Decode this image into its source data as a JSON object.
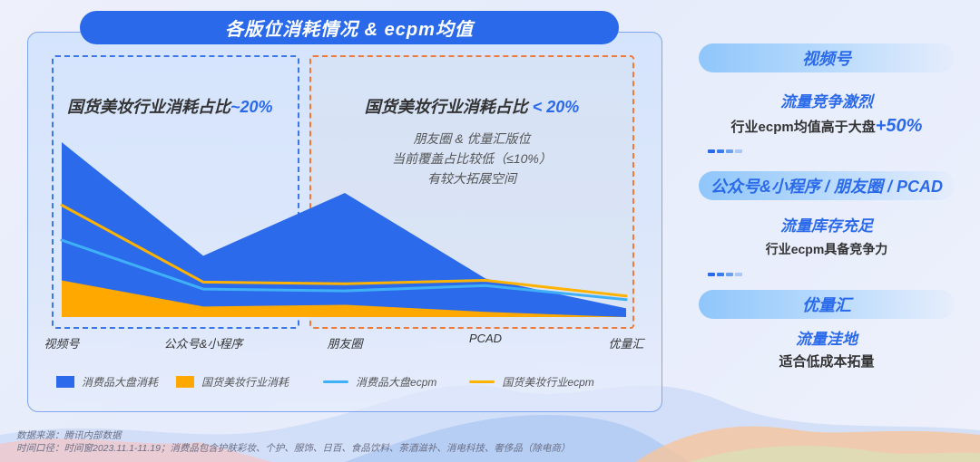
{
  "title": "各版位消耗情况 & ecpm均值",
  "annotations": {
    "left_box": {
      "text": "国货美妆行业消耗占比",
      "highlight": "~20%"
    },
    "right_box": {
      "text": "国货美妆行业消耗占比",
      "highlight": "< 20%",
      "sub_lines": [
        "朋友圈 & 优量汇版位",
        "当前覆盖占比较低（≤10%）",
        "有较大拓展空间"
      ]
    }
  },
  "legend": {
    "items": [
      {
        "label": "消费品大盘消耗",
        "type": "area",
        "color": "#2b6aea"
      },
      {
        "label": "国货美妆行业消耗",
        "type": "area",
        "color": "#ffa800"
      },
      {
        "label": "消费品大盘ecpm",
        "type": "line",
        "color": "#3fb0f8"
      },
      {
        "label": "国货美妆行业ecpm",
        "type": "line",
        "color": "#ffb300"
      }
    ]
  },
  "chart_data": {
    "type": "area",
    "title": "各版位消耗情况 & ecpm均值",
    "categories": [
      "视频号",
      "公众号&小程序",
      "朋友圈",
      "PCAD",
      "优量汇"
    ],
    "xlabel": "",
    "ylabel": "",
    "grid": false,
    "legend_position": "bottom",
    "note": "No numeric y-axis shown; values are relative heights (0-100 scale) estimated from pixels",
    "ylim": [
      0,
      100
    ],
    "series": [
      {
        "name": "消费品大盘消耗",
        "type": "area",
        "color": "#2b6aea",
        "values": [
          100,
          35,
          71,
          22,
          5
        ]
      },
      {
        "name": "国货美妆行业消耗",
        "type": "area",
        "color": "#ffa800",
        "values": [
          21,
          6,
          7,
          3,
          0
        ]
      },
      {
        "name": "消费品大盘ecpm",
        "type": "line",
        "color": "#3fb0f8",
        "values": [
          44,
          16,
          15,
          18,
          10
        ]
      },
      {
        "name": "国货美妆行业ecpm",
        "type": "line",
        "color": "#ffb300",
        "values": [
          64,
          20,
          19,
          21,
          12
        ]
      }
    ]
  },
  "sidebar": {
    "sections": [
      {
        "pill": "视频号",
        "headline": "流量竞争激烈",
        "text": "行业ecpm均值高于大盘",
        "text_highlight": "+50%"
      },
      {
        "pill": "公众号&小程序 / 朋友圈 / PCAD",
        "headline": "流量库存充足",
        "text": "行业ecpm具备竞争力",
        "text_highlight": ""
      },
      {
        "pill": "优量汇",
        "headline": "流量洼地",
        "text": "适合低成本拓量",
        "text_highlight": ""
      }
    ]
  },
  "footnote": {
    "source": "数据来源：腾讯内部数据",
    "period": "时间口径：时间窗2023.11.1-11.19；消费品包含护肤彩妆、个护、服饰、日百、食品饮料、茶酒滋补、消电科技、奢侈品（除电商）"
  }
}
